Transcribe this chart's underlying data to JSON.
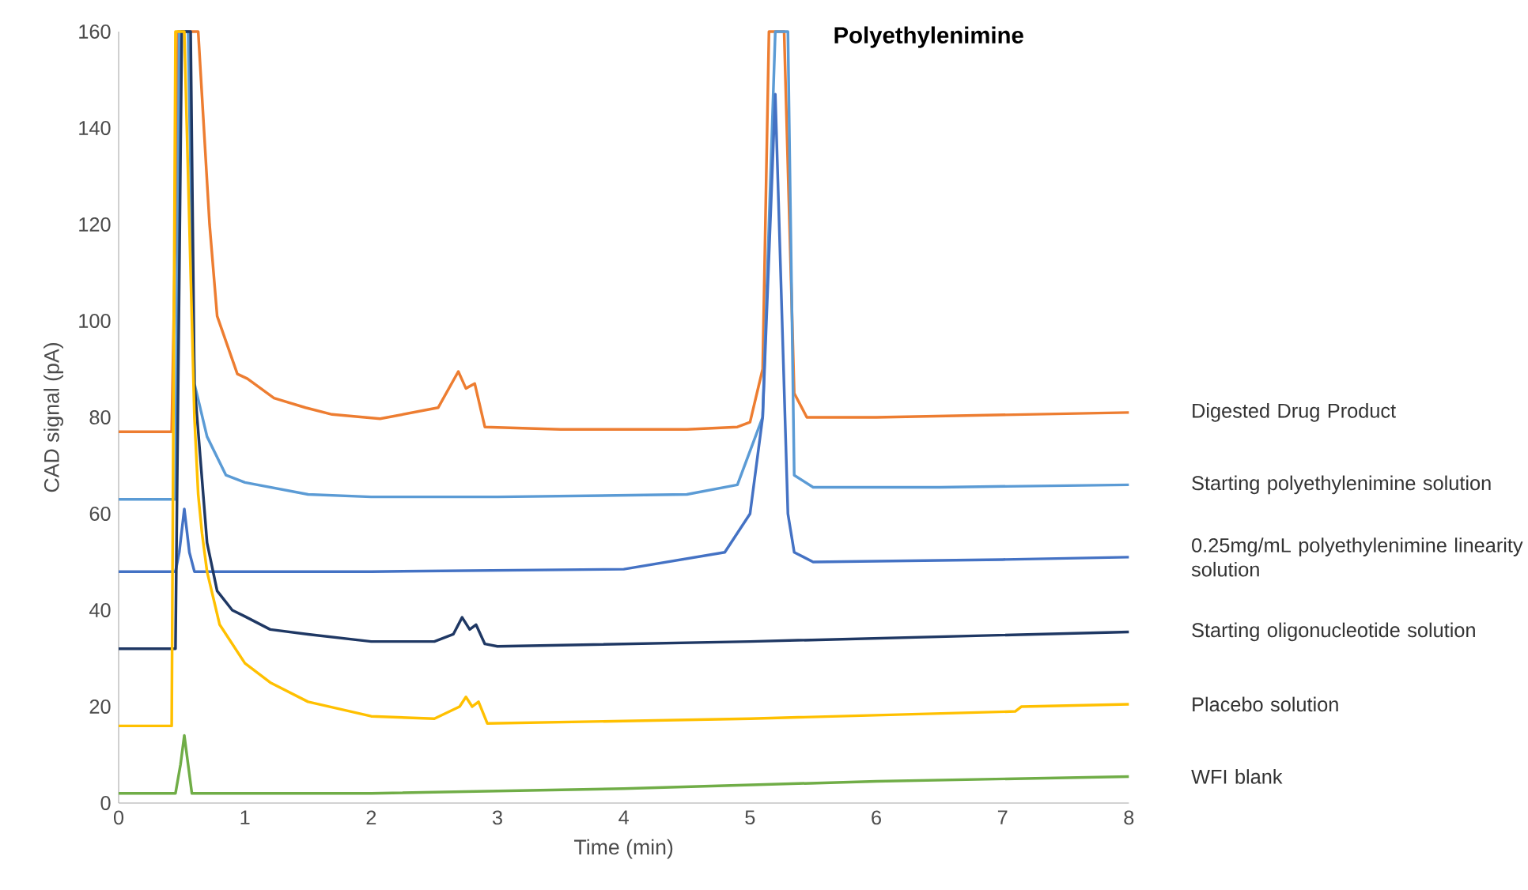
{
  "chart_data": {
    "type": "line",
    "title": "Polyethylenimine",
    "xlabel": "Time (min)",
    "ylabel": "CAD signal (pA)",
    "xlim": [
      0,
      8
    ],
    "ylim": [
      0,
      160
    ],
    "xticks": [
      0,
      1,
      2,
      3,
      4,
      5,
      6,
      7,
      8
    ],
    "yticks": [
      0,
      20,
      40,
      60,
      80,
      100,
      120,
      140,
      160
    ],
    "grid": false,
    "legend": false,
    "marker": "none",
    "line_style": "solid",
    "series": [
      {
        "name": "Digested Drug Product",
        "color": "#ed7d31",
        "x": [
          0,
          0.42,
          0.45,
          0.47,
          0.63,
          0.72,
          0.78,
          0.94,
          1.02,
          1.23,
          1.48,
          1.69,
          2.07,
          2.53,
          2.69,
          2.75,
          2.82,
          2.9,
          3.5,
          4.5,
          4.9,
          5.0,
          5.1,
          5.15,
          5.27,
          5.35,
          5.45,
          6,
          7,
          8
        ],
        "values": [
          77,
          77,
          120,
          160,
          160,
          120,
          101,
          89,
          88,
          84,
          82,
          80.6,
          79.7,
          82,
          89.5,
          86,
          87,
          78,
          77.5,
          77.5,
          78,
          79,
          90,
          160,
          160,
          85,
          80,
          80,
          80.5,
          81
        ]
      },
      {
        "name": "Starting polyethylenimine solution",
        "color": "#5b9bd5",
        "x": [
          0,
          0.45,
          0.48,
          0.55,
          0.6,
          0.7,
          0.85,
          1.0,
          1.5,
          2,
          3,
          4.5,
          4.9,
          5.1,
          5.2,
          5.3,
          5.35,
          5.5,
          6.5,
          8
        ],
        "values": [
          63,
          63,
          160,
          160,
          87,
          76,
          68,
          66.5,
          64,
          63.5,
          63.5,
          64,
          66,
          80,
          160,
          160,
          68,
          65.5,
          65.5,
          66
        ]
      },
      {
        "name": "0.25mg/mL polyethylenimine linearity solution",
        "color": "#4472c4",
        "x": [
          0,
          0.45,
          0.48,
          0.52,
          0.56,
          0.6,
          2,
          4,
          4.8,
          5.0,
          5.1,
          5.2,
          5.3,
          5.35,
          5.5,
          7,
          8
        ],
        "values": [
          48,
          48,
          52,
          61,
          52,
          48,
          48,
          48.5,
          52,
          60,
          80,
          147,
          60,
          52,
          50,
          50.5,
          51
        ]
      },
      {
        "name": "Starting oligonucleotide solution",
        "color": "#1f3864",
        "x": [
          0,
          0.45,
          0.5,
          0.57,
          0.6,
          0.7,
          0.78,
          0.9,
          1.0,
          1.2,
          1.5,
          2,
          2.5,
          2.65,
          2.72,
          2.78,
          2.83,
          2.9,
          3,
          5,
          8
        ],
        "values": [
          32,
          32,
          160,
          160,
          87,
          54,
          44,
          40,
          38.7,
          36,
          35,
          33.5,
          33.5,
          35,
          38.5,
          36,
          37,
          33,
          32.5,
          33.5,
          35.5
        ]
      },
      {
        "name": "Placebo solution",
        "color": "#ffc000",
        "x": [
          0,
          0.42,
          0.45,
          0.52,
          0.6,
          0.63,
          0.66,
          0.7,
          0.8,
          1.0,
          1.2,
          1.5,
          2,
          2.5,
          2.7,
          2.75,
          2.8,
          2.85,
          2.92,
          5,
          7.1,
          7.15,
          8
        ],
        "values": [
          16,
          16,
          160,
          160,
          80,
          64,
          56,
          48,
          37,
          29,
          25,
          21,
          18,
          17.5,
          20,
          22,
          20,
          21,
          16.5,
          17.5,
          19,
          20,
          20.5
        ]
      },
      {
        "name": "WFI blank",
        "color": "#70ad47",
        "x": [
          0,
          0.45,
          0.49,
          0.52,
          0.55,
          0.58,
          2,
          4,
          6,
          8
        ],
        "values": [
          2,
          2,
          8,
          14,
          8,
          2,
          2,
          3,
          4.5,
          5.5
        ]
      }
    ]
  }
}
